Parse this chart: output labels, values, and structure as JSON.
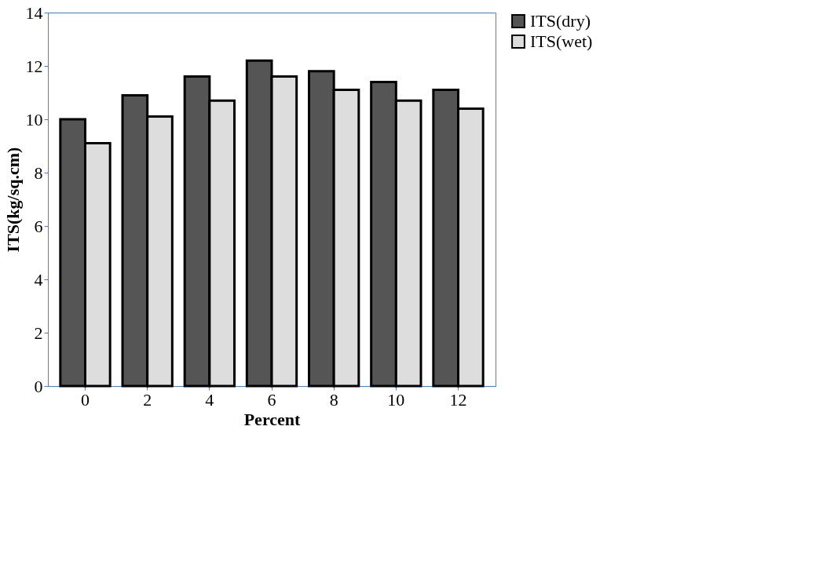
{
  "chart_data": {
    "type": "bar",
    "xlabel": "Percent",
    "ylabel": "ITS(kg/sq.cm)",
    "categories": [
      "0",
      "2",
      "4",
      "6",
      "8",
      "10",
      "12"
    ],
    "series": [
      {
        "name": "ITS(dry)",
        "color": "#555555",
        "values": [
          10.0,
          10.9,
          11.6,
          12.2,
          11.8,
          11.4,
          11.1
        ]
      },
      {
        "name": "ITS(wet)",
        "color": "#dddddd",
        "values": [
          9.1,
          10.1,
          10.7,
          11.6,
          11.1,
          10.7,
          10.4
        ]
      }
    ],
    "ylim": [
      0,
      14
    ],
    "yticks": [
      0,
      2,
      4,
      6,
      8,
      10,
      12,
      14
    ],
    "grid": false,
    "legend": "right"
  }
}
